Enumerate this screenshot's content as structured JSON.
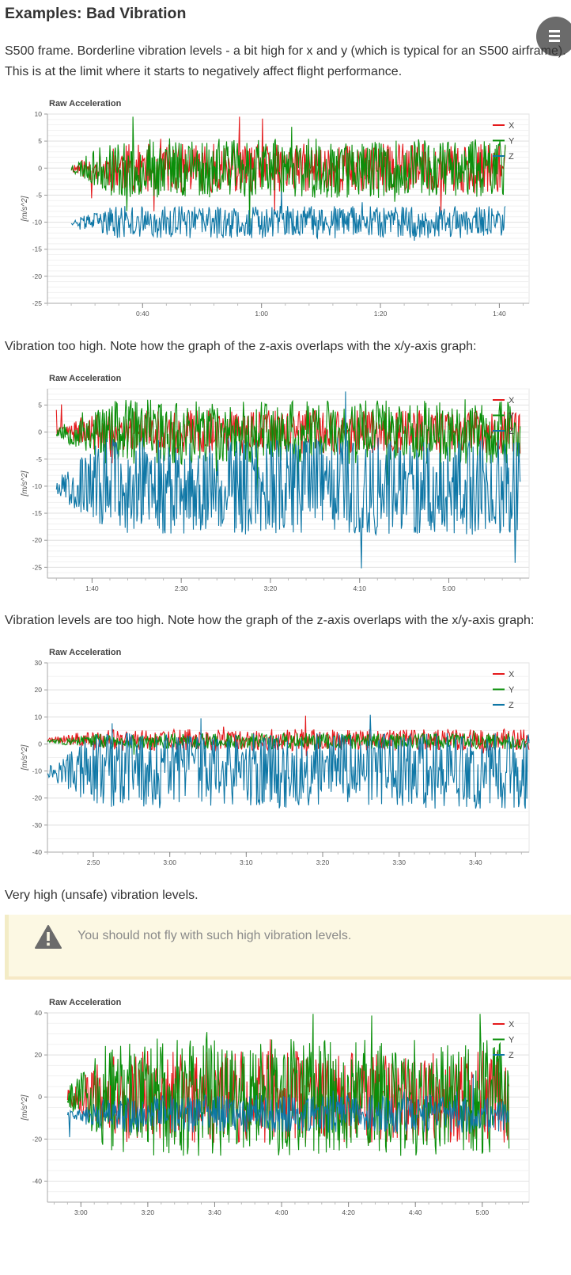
{
  "page": {
    "title": "Examples: Bad Vibration",
    "menu_icon": "hamburger-menu-icon",
    "para1_line1": "S500 frame. Borderline vibration levels - a bit high for x and y (which is typical for an S500 airframe).",
    "para1_line2": "This is at the limit where it starts to negatively affect flight performance.",
    "para2": "Vibration too high. Note how the graph of the z-axis overlaps with the x/y-axis graph:",
    "para3": "Vibration levels are too high. Note how the graph of the z-axis overlaps with the x/y-axis graph:",
    "para4": "Very high (unsafe) vibration levels."
  },
  "callout": {
    "text": "You should not fly with such high vibration levels.",
    "icon": "warning-icon",
    "background": "#fcf8e3"
  },
  "colors": {
    "x": "#e41a1c",
    "y": "#0a8f0a",
    "z": "#0f77a6",
    "grid": "#e8e8e8",
    "axis": "#999999"
  },
  "chart_data": [
    {
      "type": "line",
      "title": "Raw Acceleration",
      "ylabel": "[m/s^2]",
      "xlabel": "",
      "ylim": [
        -25,
        10
      ],
      "yticks": [
        10,
        5,
        0,
        -5,
        -10,
        -15,
        -20,
        -25
      ],
      "xticks": [
        "0:40",
        "1:00",
        "1:20",
        "1:40"
      ],
      "xrange_s": [
        24,
        105
      ],
      "xtick_s": [
        40,
        60,
        80,
        100
      ],
      "data_span_s": [
        28,
        101
      ],
      "grid": true,
      "legend": "top-right",
      "series": [
        {
          "name": "X",
          "center": 0,
          "amplitude": 4.5,
          "seed": 11
        },
        {
          "name": "Y",
          "center": 0,
          "amplitude": 5.5,
          "seed": 23
        },
        {
          "name": "Z",
          "center": -10,
          "amplitude": 3,
          "seed": 37
        }
      ]
    },
    {
      "type": "line",
      "title": "Raw Acceleration",
      "ylabel": "[m/s^2]",
      "xlabel": "",
      "ylim": [
        -27,
        8
      ],
      "yticks": [
        5,
        0,
        -5,
        -10,
        -15,
        -20,
        -25
      ],
      "xticks": [
        "1:40",
        "2:30",
        "3:20",
        "4:10",
        "5:00"
      ],
      "xrange_s": [
        75,
        345
      ],
      "xtick_s": [
        100,
        150,
        200,
        250,
        300
      ],
      "data_span_s": [
        80,
        340
      ],
      "grid": true,
      "legend": "top-right",
      "series": [
        {
          "name": "X",
          "center": 0,
          "amplitude": 4,
          "seed": 41
        },
        {
          "name": "Y",
          "center": 0,
          "amplitude": 6,
          "seed": 53
        },
        {
          "name": "Z",
          "center": -10,
          "amplitude": 9,
          "seed": 67
        }
      ]
    },
    {
      "type": "line",
      "title": "Raw Acceleration",
      "ylabel": "[m/s^2]",
      "xlabel": "",
      "ylim": [
        -40,
        30
      ],
      "yticks": [
        30,
        20,
        10,
        0,
        -10,
        -20,
        -30,
        -40
      ],
      "xticks": [
        "2:50",
        "3:00",
        "3:10",
        "3:20",
        "3:30",
        "3:40"
      ],
      "xrange_s": [
        164,
        227
      ],
      "xtick_s": [
        170,
        180,
        190,
        200,
        210,
        220
      ],
      "data_span_s": [
        164,
        227
      ],
      "grid": true,
      "legend": "top-right",
      "series": [
        {
          "name": "X",
          "center": 1.5,
          "amplitude": 4,
          "seed": 71
        },
        {
          "name": "Y",
          "center": 1,
          "amplitude": 3,
          "seed": 83
        },
        {
          "name": "Z",
          "center": -10,
          "amplitude": 14,
          "seed": 97
        }
      ]
    },
    {
      "type": "line",
      "title": "Raw Acceleration",
      "ylabel": "[m/s^2]",
      "xlabel": "",
      "ylim": [
        -50,
        40
      ],
      "yticks": [
        40,
        20,
        0,
        -20,
        -40
      ],
      "xticks": [
        "3:00",
        "3:20",
        "3:40",
        "4:00",
        "4:20",
        "4:40",
        "5:00"
      ],
      "xrange_s": [
        170,
        314
      ],
      "xtick_s": [
        180,
        200,
        220,
        240,
        260,
        280,
        300
      ],
      "data_span_s": [
        176,
        308
      ],
      "grid": true,
      "legend": "top-right",
      "series": [
        {
          "name": "X",
          "center": 0,
          "amplitude": 22,
          "seed": 101
        },
        {
          "name": "Y",
          "center": 0,
          "amplitude": 28,
          "seed": 113
        },
        {
          "name": "Z",
          "center": -8,
          "amplitude": 9,
          "seed": 127
        }
      ]
    }
  ]
}
